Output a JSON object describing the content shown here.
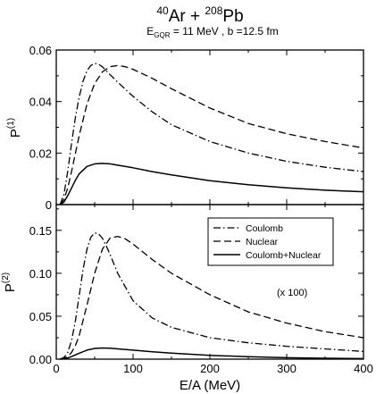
{
  "title": {
    "proj_mass": "40",
    "proj_sym": "Ar",
    "plus": " + ",
    "targ_mass": "208",
    "targ_sym": "Pb",
    "sub_E": "E",
    "sub_E_index": "GQR",
    "sub_E_value": " = 11 MeV ,  b =12.5 fm"
  },
  "legend": {
    "items": [
      {
        "label": "Coulomb",
        "style": "dash-dot"
      },
      {
        "label": "Nuclear",
        "style": "dashed"
      },
      {
        "label": "Coulomb+Nuclear",
        "style": "solid"
      }
    ]
  },
  "annotation": "(x 100)",
  "chart_data": [
    {
      "type": "line",
      "panel": "top",
      "ylabel": "P",
      "ylabel_sup": "(1)",
      "xlim": [
        0,
        400
      ],
      "ylim": [
        0,
        0.06
      ],
      "yticks": [
        0,
        0.02,
        0.04,
        0.06
      ],
      "ytick_labels": [
        "0",
        "0.02",
        "0.04",
        "0.06"
      ],
      "series": [
        {
          "name": "Coulomb",
          "style": "dash-dot",
          "x": [
            5,
            10,
            15,
            20,
            25,
            30,
            35,
            40,
            45,
            50,
            55,
            60,
            70,
            80,
            100,
            125,
            150,
            200,
            250,
            300,
            350,
            400
          ],
          "y": [
            0.0,
            0.004,
            0.013,
            0.024,
            0.034,
            0.042,
            0.048,
            0.052,
            0.054,
            0.0548,
            0.0545,
            0.0535,
            0.0505,
            0.0475,
            0.042,
            0.036,
            0.031,
            0.0245,
            0.02,
            0.0168,
            0.0145,
            0.0128
          ]
        },
        {
          "name": "Nuclear",
          "style": "dashed",
          "x": [
            5,
            10,
            15,
            20,
            25,
            30,
            40,
            50,
            60,
            70,
            80,
            90,
            100,
            125,
            150,
            200,
            250,
            300,
            350,
            400
          ],
          "y": [
            0.0,
            0.002,
            0.0065,
            0.013,
            0.02,
            0.027,
            0.039,
            0.047,
            0.0515,
            0.0535,
            0.054,
            0.0535,
            0.0525,
            0.049,
            0.045,
            0.0375,
            0.0315,
            0.0275,
            0.0245,
            0.022
          ]
        },
        {
          "name": "Coulomb+Nuclear",
          "style": "solid",
          "x": [
            5,
            10,
            15,
            20,
            25,
            30,
            40,
            50,
            60,
            70,
            80,
            100,
            125,
            150,
            200,
            250,
            300,
            350,
            400
          ],
          "y": [
            0.0,
            0.001,
            0.0035,
            0.0065,
            0.0095,
            0.012,
            0.0148,
            0.0158,
            0.016,
            0.0158,
            0.0153,
            0.0143,
            0.0128,
            0.0115,
            0.0093,
            0.0077,
            0.0065,
            0.0056,
            0.005
          ]
        }
      ]
    },
    {
      "type": "line",
      "panel": "bottom",
      "ylabel": "P",
      "ylabel_sup": "(2)",
      "xlabel": "E/A (MeV)",
      "xlim": [
        0,
        400
      ],
      "ylim": [
        0,
        0.18
      ],
      "xticks": [
        0,
        100,
        200,
        300,
        400
      ],
      "xtick_labels": [
        "0",
        "100",
        "200",
        "300",
        "400"
      ],
      "yticks": [
        0,
        0.05,
        0.1,
        0.15
      ],
      "ytick_labels": [
        "0.00",
        "0.05",
        "0.10",
        "0.15"
      ],
      "series": [
        {
          "name": "Coulomb",
          "style": "dash-dot",
          "x": [
            5,
            10,
            15,
            20,
            25,
            30,
            35,
            40,
            45,
            50,
            55,
            60,
            65,
            70,
            80,
            100,
            125,
            150,
            200,
            250,
            300,
            350,
            400
          ],
          "y": [
            0.0,
            0.002,
            0.008,
            0.022,
            0.045,
            0.075,
            0.105,
            0.128,
            0.142,
            0.147,
            0.146,
            0.141,
            0.132,
            0.122,
            0.1,
            0.068,
            0.048,
            0.037,
            0.025,
            0.019,
            0.015,
            0.012,
            0.009
          ]
        },
        {
          "name": "Nuclear",
          "style": "dashed",
          "x": [
            5,
            10,
            15,
            20,
            25,
            30,
            40,
            50,
            60,
            70,
            80,
            90,
            100,
            125,
            150,
            200,
            250,
            300,
            350,
            400
          ],
          "y": [
            0.0,
            0.001,
            0.003,
            0.008,
            0.016,
            0.028,
            0.063,
            0.1,
            0.128,
            0.141,
            0.143,
            0.14,
            0.134,
            0.116,
            0.1,
            0.075,
            0.055,
            0.042,
            0.032,
            0.025
          ]
        },
        {
          "name": "Coulomb+Nuclear",
          "style": "solid",
          "x": [
            5,
            10,
            15,
            20,
            30,
            40,
            50,
            60,
            70,
            80,
            100,
            125,
            150,
            200,
            250,
            300,
            350,
            400
          ],
          "y": [
            0.0,
            0.0005,
            0.0015,
            0.003,
            0.007,
            0.0105,
            0.0125,
            0.013,
            0.0128,
            0.012,
            0.0105,
            0.0085,
            0.007,
            0.0045,
            0.0028,
            0.0017,
            0.001,
            0.0006
          ]
        }
      ]
    }
  ]
}
